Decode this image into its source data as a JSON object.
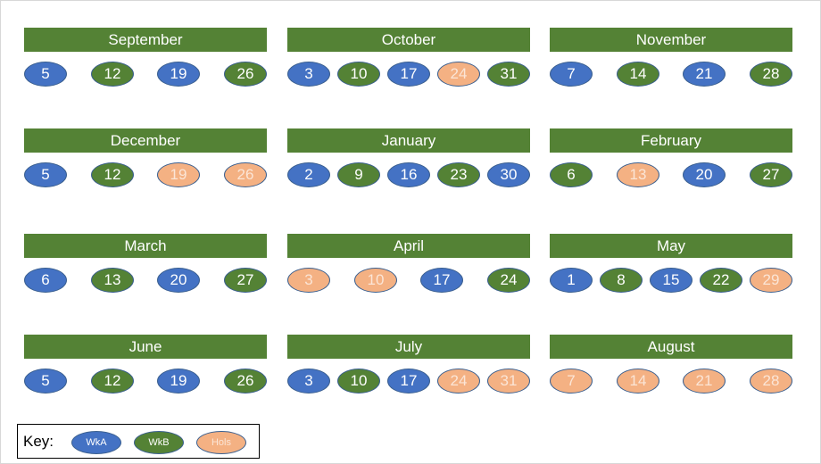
{
  "months": [
    {
      "name": "September",
      "dates": [
        {
          "d": "5",
          "t": "wkA"
        },
        {
          "d": "12",
          "t": "wkB"
        },
        {
          "d": "19",
          "t": "wkA"
        },
        {
          "d": "26",
          "t": "wkB"
        }
      ]
    },
    {
      "name": "October",
      "dates": [
        {
          "d": "3",
          "t": "wkA"
        },
        {
          "d": "10",
          "t": "wkB"
        },
        {
          "d": "17",
          "t": "wkA"
        },
        {
          "d": "24",
          "t": "hols"
        },
        {
          "d": "31",
          "t": "wkB"
        }
      ]
    },
    {
      "name": "November",
      "dates": [
        {
          "d": "7",
          "t": "wkA"
        },
        {
          "d": "14",
          "t": "wkB"
        },
        {
          "d": "21",
          "t": "wkA"
        },
        {
          "d": "28",
          "t": "wkB"
        }
      ]
    },
    {
      "name": "December",
      "dates": [
        {
          "d": "5",
          "t": "wkA"
        },
        {
          "d": "12",
          "t": "wkB"
        },
        {
          "d": "19",
          "t": "hols"
        },
        {
          "d": "26",
          "t": "hols"
        }
      ]
    },
    {
      "name": "January",
      "dates": [
        {
          "d": "2",
          "t": "wkA"
        },
        {
          "d": "9",
          "t": "wkB"
        },
        {
          "d": "16",
          "t": "wkA"
        },
        {
          "d": "23",
          "t": "wkB"
        },
        {
          "d": "30",
          "t": "wkA"
        }
      ]
    },
    {
      "name": "February",
      "dates": [
        {
          "d": "6",
          "t": "wkB"
        },
        {
          "d": "13",
          "t": "hols"
        },
        {
          "d": "20",
          "t": "wkA"
        },
        {
          "d": "27",
          "t": "wkB"
        }
      ]
    },
    {
      "name": "March",
      "dates": [
        {
          "d": "6",
          "t": "wkA"
        },
        {
          "d": "13",
          "t": "wkB"
        },
        {
          "d": "20",
          "t": "wkA"
        },
        {
          "d": "27",
          "t": "wkB"
        }
      ]
    },
    {
      "name": "April",
      "dates": [
        {
          "d": "3",
          "t": "hols"
        },
        {
          "d": "10",
          "t": "hols"
        },
        {
          "d": "17",
          "t": "wkA"
        },
        {
          "d": "24",
          "t": "wkB"
        }
      ]
    },
    {
      "name": "May",
      "dates": [
        {
          "d": "1",
          "t": "wkA"
        },
        {
          "d": "8",
          "t": "wkB"
        },
        {
          "d": "15",
          "t": "wkA"
        },
        {
          "d": "22",
          "t": "wkB"
        },
        {
          "d": "29",
          "t": "hols"
        }
      ]
    },
    {
      "name": "June",
      "dates": [
        {
          "d": "5",
          "t": "wkA"
        },
        {
          "d": "12",
          "t": "wkB"
        },
        {
          "d": "19",
          "t": "wkA"
        },
        {
          "d": "26",
          "t": "wkB"
        }
      ]
    },
    {
      "name": "July",
      "dates": [
        {
          "d": "3",
          "t": "wkA"
        },
        {
          "d": "10",
          "t": "wkB"
        },
        {
          "d": "17",
          "t": "wkA"
        },
        {
          "d": "24",
          "t": "hols"
        },
        {
          "d": "31",
          "t": "hols"
        }
      ]
    },
    {
      "name": "August",
      "dates": [
        {
          "d": "7",
          "t": "hols"
        },
        {
          "d": "14",
          "t": "hols"
        },
        {
          "d": "21",
          "t": "hols"
        },
        {
          "d": "28",
          "t": "hols"
        }
      ]
    }
  ],
  "key": {
    "label": "Key:",
    "items": [
      {
        "label": "WkA",
        "t": "wkA"
      },
      {
        "label": "WkB",
        "t": "wkB"
      },
      {
        "label": "Hols",
        "t": "hols"
      }
    ]
  },
  "colors": {
    "wkA": "#4472c4",
    "wkB": "#548235",
    "hols": "#f4b183",
    "header": "#548235"
  }
}
